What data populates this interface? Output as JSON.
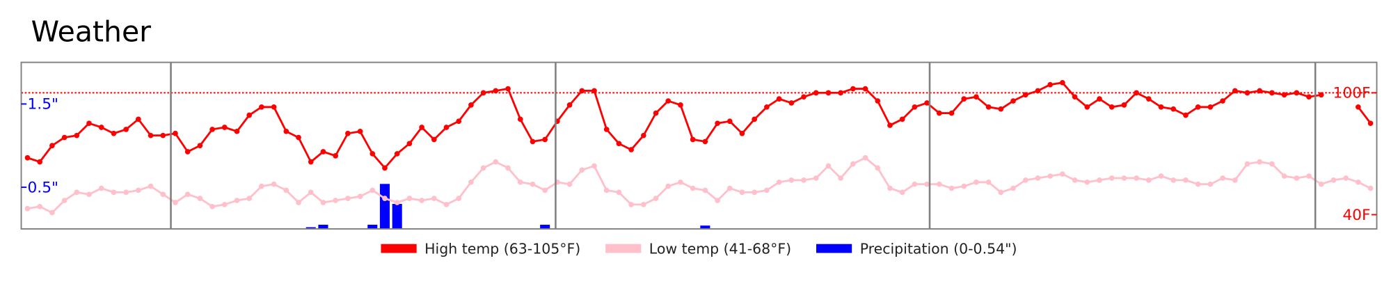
{
  "chart_data": {
    "type": "line",
    "title": "Weather",
    "ylim": [
      33,
      115
    ],
    "yticks": [
      {
        "value": 40,
        "label": "40F"
      },
      {
        "value": 100,
        "label": "100F"
      }
    ],
    "y_axis_position": "right",
    "y2lim": [
      0,
      2
    ],
    "y2ticks": [
      {
        "value": 0.5,
        "label": "0.5\""
      },
      {
        "value": 1.5,
        "label": "1.5\""
      }
    ],
    "y2_axis_position": "left",
    "hline": {
      "value": 100,
      "color": "#ff0000",
      "style": "dotted"
    },
    "legend": "bottom",
    "series": [
      {
        "name": "High temp (63-105°F)",
        "color": "#ff0000",
        "values": [
          68,
          66,
          74,
          78,
          79,
          85,
          83,
          80,
          82,
          87,
          79,
          79,
          80,
          71,
          74,
          82,
          83,
          81,
          89,
          93,
          93,
          81,
          78,
          66,
          71,
          69,
          80,
          81,
          70,
          63,
          70,
          75,
          83,
          77,
          83,
          86,
          94,
          100,
          101,
          102,
          87,
          76,
          77,
          86,
          94,
          101,
          101,
          82,
          75,
          72,
          79,
          90,
          96,
          94,
          77,
          76,
          85,
          86,
          80,
          87,
          93,
          97,
          95,
          98,
          100,
          100,
          100,
          102,
          102,
          96,
          84,
          87,
          93,
          95,
          90,
          90,
          97,
          98,
          93,
          92,
          96,
          99,
          101,
          104,
          105,
          98,
          93,
          97,
          93,
          94,
          100,
          97,
          93,
          92,
          89,
          93,
          93,
          96,
          101,
          100,
          101,
          100,
          99,
          100,
          98,
          99,
          null,
          null,
          93,
          85
        ]
      },
      {
        "name": "Low temp (41-68°F)",
        "color": "#ffc0cb",
        "values": [
          43,
          44,
          41,
          47,
          51,
          50,
          53,
          51,
          51,
          52,
          54,
          50,
          46,
          50,
          48,
          44,
          45,
          47,
          48,
          54,
          55,
          52,
          46,
          51,
          46,
          47,
          48,
          49,
          52,
          48,
          46,
          48,
          47,
          48,
          45,
          48,
          56,
          63,
          66,
          63,
          56,
          55,
          52,
          56,
          55,
          62,
          64,
          52,
          51,
          45,
          45,
          48,
          54,
          56,
          53,
          52,
          47,
          53,
          51,
          51,
          52,
          56,
          57,
          57,
          58,
          64,
          58,
          65,
          68,
          63,
          53,
          51,
          55,
          55,
          55,
          53,
          54,
          56,
          56,
          51,
          53,
          57,
          58,
          59,
          60,
          57,
          56,
          57,
          58,
          58,
          58,
          57,
          59,
          57,
          57,
          55,
          55,
          58,
          57,
          65,
          66,
          65,
          59,
          58,
          59,
          55,
          57,
          58,
          56,
          53
        ]
      },
      {
        "name": "Precipitation (0-0.54\")",
        "color": "#0000ff",
        "type": "bar",
        "axis": "y2",
        "values": [
          0,
          0,
          0,
          0,
          0,
          0,
          0,
          0,
          0,
          0,
          0,
          0,
          0,
          0,
          0,
          0,
          0,
          0,
          0,
          0,
          0,
          0,
          0,
          0.02,
          0.05,
          0,
          0,
          0,
          0.05,
          0.54,
          0.3,
          0,
          0,
          0,
          0,
          0,
          0,
          0,
          0,
          0,
          0,
          0,
          0.05,
          0,
          0,
          0,
          0,
          0,
          0,
          0,
          0,
          0,
          0,
          0,
          0,
          0.04,
          0,
          0,
          0,
          0,
          0,
          0,
          0,
          0,
          0,
          0,
          0,
          0,
          0,
          0,
          0,
          0,
          0,
          0,
          0,
          0,
          0,
          0,
          0,
          0,
          0,
          0,
          0,
          0,
          0,
          0,
          0,
          0,
          0,
          0,
          0,
          0,
          0,
          0,
          0,
          0,
          0,
          0,
          0,
          0,
          0,
          0,
          0,
          0,
          0,
          0,
          0,
          0,
          0,
          0
        ]
      }
    ]
  }
}
